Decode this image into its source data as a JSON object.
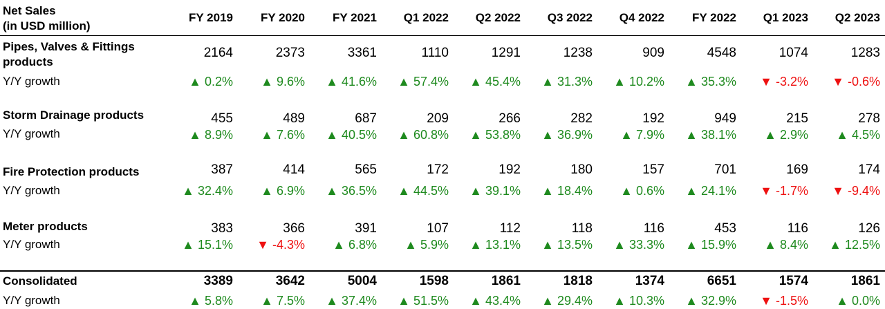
{
  "header": {
    "title_lines": [
      "Net Sales",
      "(in USD million)"
    ],
    "columns": [
      "FY 2019",
      "FY 2020",
      "FY 2021",
      "Q1 2022",
      "Q2 2022",
      "Q3 2022",
      "Q4 2022",
      "FY 2022",
      "Q1 2023",
      "Q2 2023"
    ]
  },
  "sections": [
    {
      "label": "Pipes, Valves & Fittings products",
      "values": [
        2164,
        2373,
        3361,
        1110,
        1291,
        1238,
        909,
        4548,
        1074,
        1283
      ],
      "growth_label": "Y/Y growth",
      "growth": [
        "▲ 0.2%",
        "▲ 9.6%",
        "▲ 41.6%",
        "▲ 57.4%",
        "▲ 45.4%",
        "▲ 31.3%",
        "▲ 10.2%",
        "▲ 35.3%",
        "▼ -3.2%",
        "▼ -0.6%"
      ]
    },
    {
      "label": "Storm Drainage products",
      "values": [
        455,
        489,
        687,
        209,
        266,
        282,
        192,
        949,
        215,
        278
      ],
      "growth_label": "Y/Y growth",
      "growth": [
        "▲ 8.9%",
        "▲ 7.6%",
        "▲ 40.5%",
        "▲ 60.8%",
        "▲ 53.8%",
        "▲ 36.9%",
        "▲ 7.9%",
        "▲ 38.1%",
        "▲ 2.9%",
        "▲ 4.5%"
      ]
    },
    {
      "label": "Fire Protection products",
      "values": [
        387,
        414,
        565,
        172,
        192,
        180,
        157,
        701,
        169,
        174
      ],
      "growth_label": "Y/Y growth",
      "growth": [
        "▲ 32.4%",
        "▲ 6.9%",
        "▲ 36.5%",
        "▲ 44.5%",
        "▲ 39.1%",
        "▲ 18.4%",
        "▲ 0.6%",
        "▲ 24.1%",
        "▼ -1.7%",
        "▼ -9.4%"
      ]
    },
    {
      "label": "Meter products",
      "values": [
        383,
        366,
        391,
        107,
        112,
        118,
        116,
        453,
        116,
        126
      ],
      "growth_label": "Y/Y growth",
      "growth": [
        "▲ 15.1%",
        "▼ -4.3%",
        "▲ 6.8%",
        "▲ 5.9%",
        "▲ 13.1%",
        "▲ 13.5%",
        "▲ 33.3%",
        "▲ 15.9%",
        "▲ 8.4%",
        "▲ 12.5%"
      ]
    },
    {
      "label": "Consolidated",
      "values": [
        3389,
        3642,
        5004,
        1598,
        1861,
        1818,
        1374,
        6651,
        1574,
        1861
      ],
      "growth_label": "Y/Y growth",
      "growth": [
        "▲ 5.8%",
        "▲ 7.5%",
        "▲ 37.4%",
        "▲ 51.5%",
        "▲ 43.4%",
        "▲ 29.4%",
        "▲ 10.3%",
        "▲ 32.9%",
        "▼ -1.5%",
        "▲ 0.0%"
      ]
    }
  ]
}
